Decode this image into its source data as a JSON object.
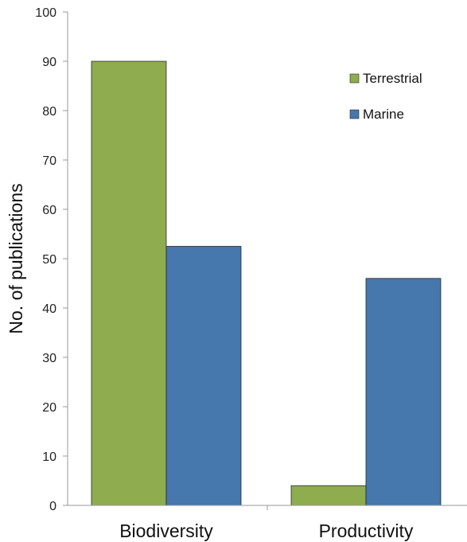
{
  "chart_data": {
    "type": "bar",
    "categories": [
      "Biodiversity",
      "Productivity"
    ],
    "series": [
      {
        "name": "Terrestrial",
        "color": "#8fac4f",
        "values": [
          90,
          4
        ]
      },
      {
        "name": "Marine",
        "color": "#4677ad",
        "values": [
          52.5,
          46
        ]
      }
    ],
    "xlabel": "",
    "ylabel": "No. of publications",
    "ylim": [
      0,
      100
    ],
    "yticks": [
      "0",
      "10",
      "20",
      "30",
      "40",
      "50",
      "60",
      "70",
      "80",
      "90",
      "100"
    ],
    "grid": false,
    "legend_position": "top-right"
  }
}
